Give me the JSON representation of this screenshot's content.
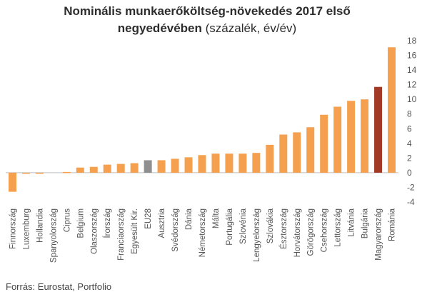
{
  "chart_data": {
    "type": "bar",
    "title": "Nominális munkaerőköltség-növekedés 2017 első",
    "title_line2": "negyedévében",
    "title_unit": "(százalék, év/év)",
    "source": "Forrás: Eurostat, Portfolio",
    "categories": [
      "Finnország",
      "Luxemburg",
      "Hollandia",
      "Spanyolország",
      "Ciprus",
      "Belgium",
      "Olaszország",
      "Írország",
      "Franciaország",
      "Egyesült Kir.",
      "EU28",
      "Ausztria",
      "Svédország",
      "Dánia",
      "Németország",
      "Málta",
      "Portugália",
      "Szlovénia",
      "Lengyelország",
      "Szlovákia",
      "Észtország",
      "Horvátország",
      "Görögország",
      "Csehország",
      "Lettország",
      "Litvánia",
      "Bulgária",
      "Magyarország",
      "Románia"
    ],
    "values": [
      -2.6,
      -0.1,
      -0.1,
      0.0,
      0.1,
      0.7,
      0.8,
      1.1,
      1.2,
      1.3,
      1.7,
      1.7,
      1.9,
      2.1,
      2.4,
      2.6,
      2.6,
      2.6,
      2.7,
      3.8,
      5.2,
      5.5,
      6.2,
      7.9,
      9.0,
      9.8,
      10.0,
      11.7,
      17.1
    ],
    "highlight": {
      "EU28": "#8f8f8f",
      "Magyarország": "#a33a27"
    },
    "default_color": "#f5a04e",
    "ylim": [
      -4,
      18
    ],
    "yticks": [
      -4,
      -2,
      0,
      2,
      4,
      6,
      8,
      10,
      12,
      14,
      16,
      18
    ],
    "axis_side": "right",
    "grid": false
  }
}
